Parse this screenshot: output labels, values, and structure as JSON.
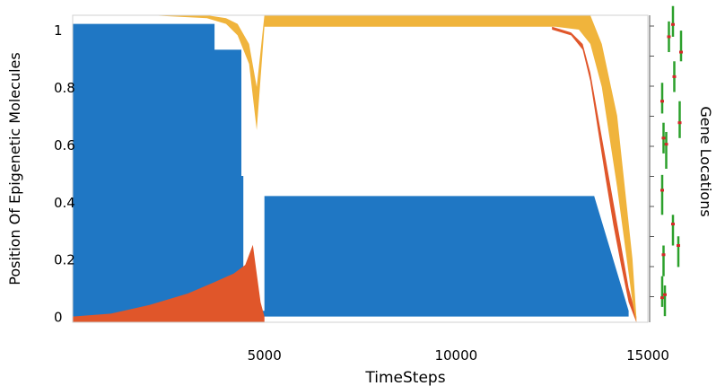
{
  "chart_data": {
    "type": "area",
    "xlabel": "TimeSteps",
    "ylabel": "Position Of Epigenetic Molecules",
    "right_label": "Gene Locations",
    "xlim": [
      0,
      15000
    ],
    "ylim": [
      -0.02,
      1.05
    ],
    "x_ticks": [
      5000,
      10000,
      15000
    ],
    "y_ticks": [
      0,
      0.2,
      0.4,
      0.6,
      0.8,
      1
    ],
    "grid": false,
    "legend": "none",
    "colors": {
      "blue": "#1f77c4",
      "orange": "#e0562a",
      "gold": "#f0b43c",
      "gene_bar": "#2ca02c",
      "gene_marker": "#d62728"
    },
    "series": [
      {
        "color": "blue",
        "x": [
          0,
          3700,
          3700,
          4400,
          4400,
          4450,
          4450,
          4550,
          4550,
          5000,
          5000,
          13600,
          13600,
          14500,
          14500,
          15000
        ],
        "y_top": [
          1.02,
          1.02,
          0.93,
          0.93,
          0.49,
          0.49,
          0.08,
          0.08,
          0.02,
          0.02,
          0.42,
          0.42,
          0.42,
          0.02,
          0.0,
          0.0
        ],
        "y_bottom": [
          0.0,
          0.0,
          0.0,
          0.0,
          0.0,
          0.0,
          0.0,
          0.0,
          0.0,
          0.0,
          0.0,
          0.0,
          0.0,
          0.0,
          0.0,
          0.0
        ]
      },
      {
        "color": "orange",
        "x": [
          0,
          1000,
          2000,
          3000,
          3700,
          4200,
          4500,
          4700,
          4800,
          4900,
          5000
        ],
        "y_top": [
          0.0,
          0.01,
          0.04,
          0.08,
          0.12,
          0.15,
          0.18,
          0.25,
          0.15,
          0.05,
          0.0
        ],
        "y_bottom": [
          -0.02,
          -0.02,
          -0.02,
          -0.02,
          -0.02,
          -0.02,
          -0.02,
          -0.02,
          -0.02,
          -0.02,
          -0.02
        ]
      },
      {
        "color": "orange",
        "x": [
          12500,
          13000,
          13300,
          13500,
          13700,
          13900,
          14100,
          14300,
          14500,
          14700
        ],
        "y_top": [
          1.01,
          0.99,
          0.95,
          0.85,
          0.7,
          0.55,
          0.4,
          0.25,
          0.1,
          0.0
        ],
        "y_bottom": [
          1.0,
          0.98,
          0.93,
          0.82,
          0.65,
          0.48,
          0.32,
          0.18,
          0.05,
          -0.02
        ]
      },
      {
        "color": "gold",
        "x": [
          0,
          2000,
          3500,
          4000,
          4300,
          4600,
          4800,
          5000,
          12600,
          13200,
          13500,
          13800,
          14200,
          14600,
          14700
        ],
        "y_top": [
          1.05,
          1.05,
          1.05,
          1.04,
          1.02,
          0.95,
          0.8,
          1.05,
          1.05,
          1.05,
          1.05,
          0.95,
          0.7,
          0.2,
          0.0
        ],
        "y_bottom": [
          1.05,
          1.05,
          1.04,
          1.02,
          0.98,
          0.88,
          0.65,
          1.01,
          1.01,
          1.0,
          0.95,
          0.8,
          0.45,
          0.05,
          -0.02
        ]
      }
    ],
    "gene_locations": [
      {
        "x": 0.1,
        "y0": 0.05,
        "y1": 0.15,
        "m": 0.08
      },
      {
        "x": 0.2,
        "y0": 0.02,
        "y1": 0.12,
        "m": 0.09
      },
      {
        "x": 0.15,
        "y0": 0.15,
        "y1": 0.25,
        "m": 0.22
      },
      {
        "x": 0.7,
        "y0": 0.18,
        "y1": 0.28,
        "m": 0.25
      },
      {
        "x": 0.5,
        "y0": 0.25,
        "y1": 0.35,
        "m": 0.32
      },
      {
        "x": 0.1,
        "y0": 0.35,
        "y1": 0.48,
        "m": 0.43
      },
      {
        "x": 0.25,
        "y0": 0.5,
        "y1": 0.62,
        "m": 0.58
      },
      {
        "x": 0.15,
        "y0": 0.55,
        "y1": 0.65,
        "m": 0.6
      },
      {
        "x": 0.75,
        "y0": 0.6,
        "y1": 0.72,
        "m": 0.65
      },
      {
        "x": 0.1,
        "y0": 0.68,
        "y1": 0.78,
        "m": 0.72
      },
      {
        "x": 0.55,
        "y0": 0.75,
        "y1": 0.85,
        "m": 0.8
      },
      {
        "x": 0.35,
        "y0": 0.88,
        "y1": 0.98,
        "m": 0.93
      },
      {
        "x": 0.8,
        "y0": 0.85,
        "y1": 0.95,
        "m": 0.88
      },
      {
        "x": 0.5,
        "y0": 0.93,
        "y1": 1.03,
        "m": 0.97
      }
    ]
  }
}
